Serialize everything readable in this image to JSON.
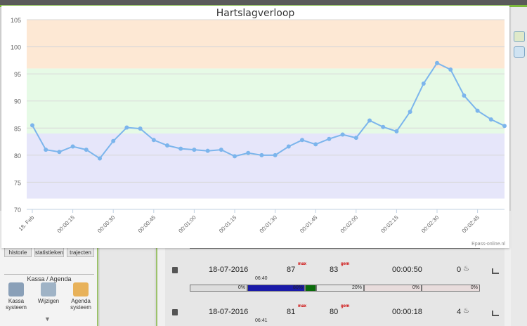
{
  "background": {
    "nav_buttons": [
      "historie",
      "statistieken",
      "trajecten"
    ],
    "section_label": "Kassa / Agenda",
    "tiles": [
      {
        "label": "Kassa\nsysteem",
        "icon": "cash-register-icon"
      },
      {
        "label": "Wijzigen",
        "icon": "edit-register-icon"
      },
      {
        "label": "Agenda\nsysteem",
        "icon": "calendar-icon"
      }
    ],
    "rows": [
      {
        "date": "18-07-2016",
        "time": "06:40",
        "left_value": "87",
        "left_mini": "max",
        "right_value": "83",
        "right_mini": "gem",
        "duration": "00:00:50",
        "count": "0"
      },
      {
        "date": "18-07-2016",
        "time": "06:41",
        "left_value": "81",
        "left_mini": "max",
        "right_value": "80",
        "right_mini": "gem",
        "duration": "00:00:18",
        "count": "4"
      }
    ],
    "bar_segments": [
      "0%",
      "80%",
      "",
      "20%",
      "0%",
      "0%"
    ]
  },
  "chart_data": {
    "type": "line",
    "title": "Hartslagverloop",
    "credit": "Epass-online.nl",
    "ylim": [
      70,
      105
    ],
    "yticks": [
      70,
      75,
      80,
      85,
      90,
      95,
      100,
      105
    ],
    "xtick_labels": [
      "18. Feb",
      "00:00:15",
      "00:00:30",
      "00:00:45",
      "00:01:00",
      "00:01:15",
      "00:01:30",
      "00:01:45",
      "00:02:00",
      "00:02:15",
      "00:02:30",
      "00:02:45"
    ],
    "bands": [
      {
        "from": 72,
        "to": 84,
        "color": "#e6e6fa"
      },
      {
        "from": 84,
        "to": 96,
        "color": "#e6fae6"
      },
      {
        "from": 96,
        "to": 105,
        "color": "#fde8d4"
      }
    ],
    "series": [
      {
        "color": "#7cb5ec",
        "values": [
          85.5,
          81,
          80.6,
          81.6,
          81,
          79.4,
          82.6,
          85.1,
          84.9,
          82.8,
          81.8,
          81.2,
          81,
          80.8,
          81,
          79.8,
          80.4,
          80,
          80,
          81.6,
          82.8,
          82,
          83,
          83.8,
          83.2,
          86.4,
          85.2,
          84.4,
          88,
          93.2,
          97,
          95.8,
          91,
          88.2,
          86.6,
          85.4
        ]
      }
    ]
  },
  "colors": {
    "accent_green": "#7dbb3c",
    "line": "#7cb5ec",
    "bar_blue": "#1a1aa8",
    "bar_green": "#0a6b0a"
  }
}
